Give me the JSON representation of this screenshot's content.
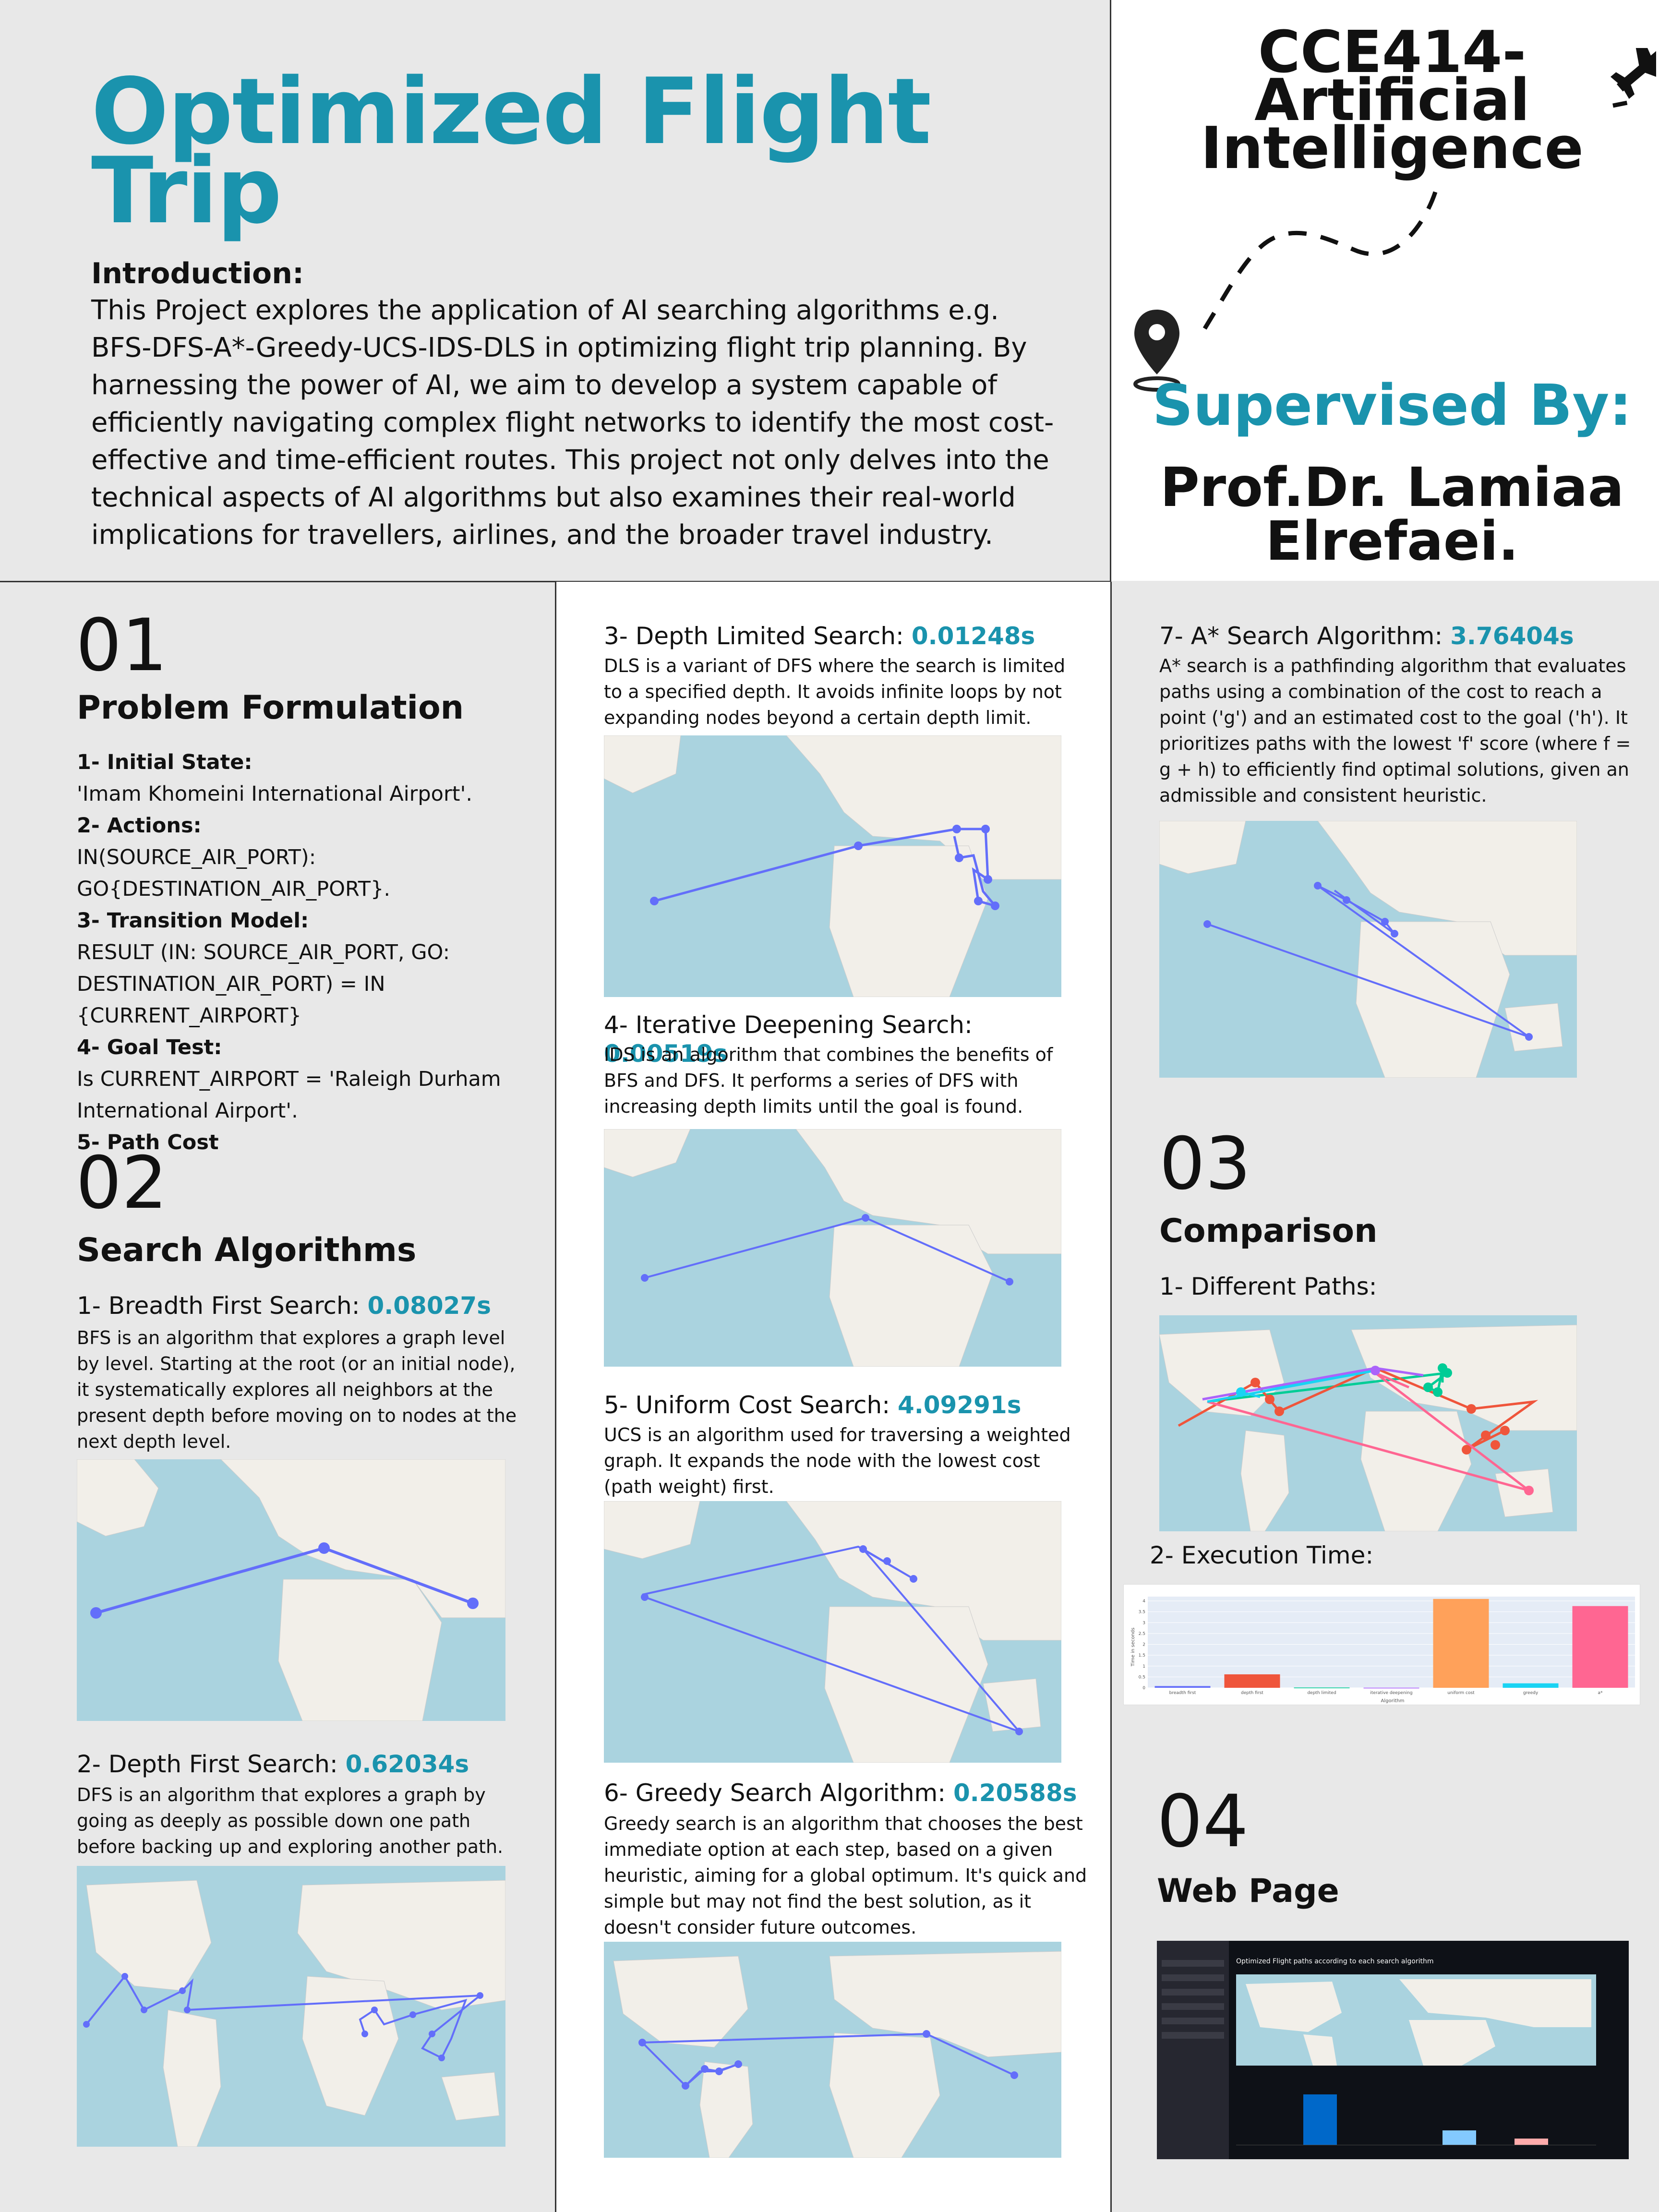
{
  "title": "Optimized Flight Trip",
  "intro": {
    "heading": "Introduction:",
    "text": "This Project explores the application of AI searching algorithms e.g. BFS-DFS-A*-Greedy-UCS-IDS-DLS in optimizing flight trip planning. By harnessing the power of AI, we aim to develop a system capable of efficiently navigating complex flight networks to identify the most cost-effective and time-efficient routes. This project not only delves into the technical aspects of AI algorithms but also examines their real-world implications for travellers, airlines, and the broader travel industry."
  },
  "course": {
    "line1": "CCE414-",
    "line2": "Artificial",
    "line3": "Intelligence"
  },
  "supervisor": {
    "heading": "Supervised By:",
    "name1": "Prof.Dr. Lamiaa",
    "name2": "Elrefaei."
  },
  "sec01": {
    "num": "01",
    "title": "Problem Formulation",
    "items": [
      {
        "label": "1- Initial State:",
        "text": "'Imam Khomeini International Airport'."
      },
      {
        "label": "2- Actions:",
        "text": "IN(SOURCE_AIR_PORT): GO{DESTINATION_AIR_PORT}."
      },
      {
        "label": "3- Transition Model:",
        "text": "RESULT (IN: SOURCE_AIR_PORT, GO: DESTINATION_AIR_PORT) = IN {CURRENT_AIRPORT}"
      },
      {
        "label": "4- Goal Test:",
        "text": "Is CURRENT_AIRPORT = 'Raleigh Durham International Airport'."
      },
      {
        "label": "5- Path Cost",
        "text": ""
      }
    ]
  },
  "sec02": {
    "num": "02",
    "title": "Search Algorithms"
  },
  "algorithms": {
    "bfs": {
      "name": "1- Breadth First Search:",
      "time": "0.08027s",
      "desc": "BFS is an algorithm that explores a graph level by level. Starting at the root (or an initial node), it systematically explores all neighbors at the present depth before moving on to nodes at the next depth level."
    },
    "dfs": {
      "name": "2- Depth First Search:",
      "time": "0.62034s",
      "desc": "DFS is an algorithm that explores a graph by going as deeply as possible down one path before backing up and exploring another path."
    },
    "dls": {
      "name": "3- Depth Limited Search:",
      "time": "0.01248s",
      "desc": "DLS is a variant of DFS where the search is limited to a specified depth. It avoids infinite loops by not expanding nodes beyond a certain depth limit."
    },
    "ids": {
      "name": "4- Iterative Deepening Search:",
      "time": "0.00519s",
      "desc": "IDS is an algorithm that combines the benefits of BFS and DFS. It performs a series of DFS with increasing depth limits until the goal is found."
    },
    "ucs": {
      "name": "5- Uniform Cost Search:",
      "time": "4.09291s",
      "desc": "UCS is an algorithm used for traversing a weighted graph. It expands the node with the lowest cost (path weight) first."
    },
    "greedy": {
      "name": "6- Greedy Search Algorithm:",
      "time": "0.20588s",
      "desc": "Greedy search is an algorithm that chooses the best immediate option at each step, based on a given heuristic, aiming for a global optimum. It's quick and simple but may not find the best solution, as it doesn't consider future outcomes."
    },
    "astar": {
      "name": "7- A* Search Algorithm:",
      "time": "3.76404s",
      "desc": "A* search is a pathfinding algorithm that evaluates paths using a combination of the cost to reach a point ('g') and an estimated cost to the goal ('h'). It prioritizes paths with the lowest 'f' score (where f = g + h) to efficiently find optimal solutions, given an admissible and consistent heuristic."
    }
  },
  "sec03": {
    "num": "03",
    "title": "Comparison",
    "paths": "1- Different Paths:",
    "exec": "2- Execution Time:"
  },
  "sec04": {
    "num": "04",
    "title": "Web Page",
    "web_heading": "Optimized Flight paths according to each search algorithm"
  },
  "chart_data": {
    "type": "bar",
    "categories": [
      "breadth first",
      "depth first",
      "depth limited",
      "iterative deepening",
      "uniform cost",
      "greedy",
      "a*"
    ],
    "values": [
      0.08027,
      0.62034,
      0.01248,
      0.00519,
      4.09291,
      0.20588,
      3.76404
    ],
    "colors": [
      "#636efa",
      "#ef553b",
      "#00cc96",
      "#ab63fa",
      "#ffa15a",
      "#19d3f3",
      "#ff6692"
    ],
    "xlabel": "Algorithm",
    "ylabel": "Time in seconds",
    "ylim": [
      0,
      4.2
    ],
    "yticks": [
      "0",
      "0.5",
      "1",
      "1.5",
      "2",
      "2.5",
      "3",
      "3.5",
      "4"
    ]
  },
  "colors": {
    "accent": "#1a93ad",
    "route": "#636efa",
    "map_water": "#aad3df",
    "map_land": "#f2efe9"
  }
}
